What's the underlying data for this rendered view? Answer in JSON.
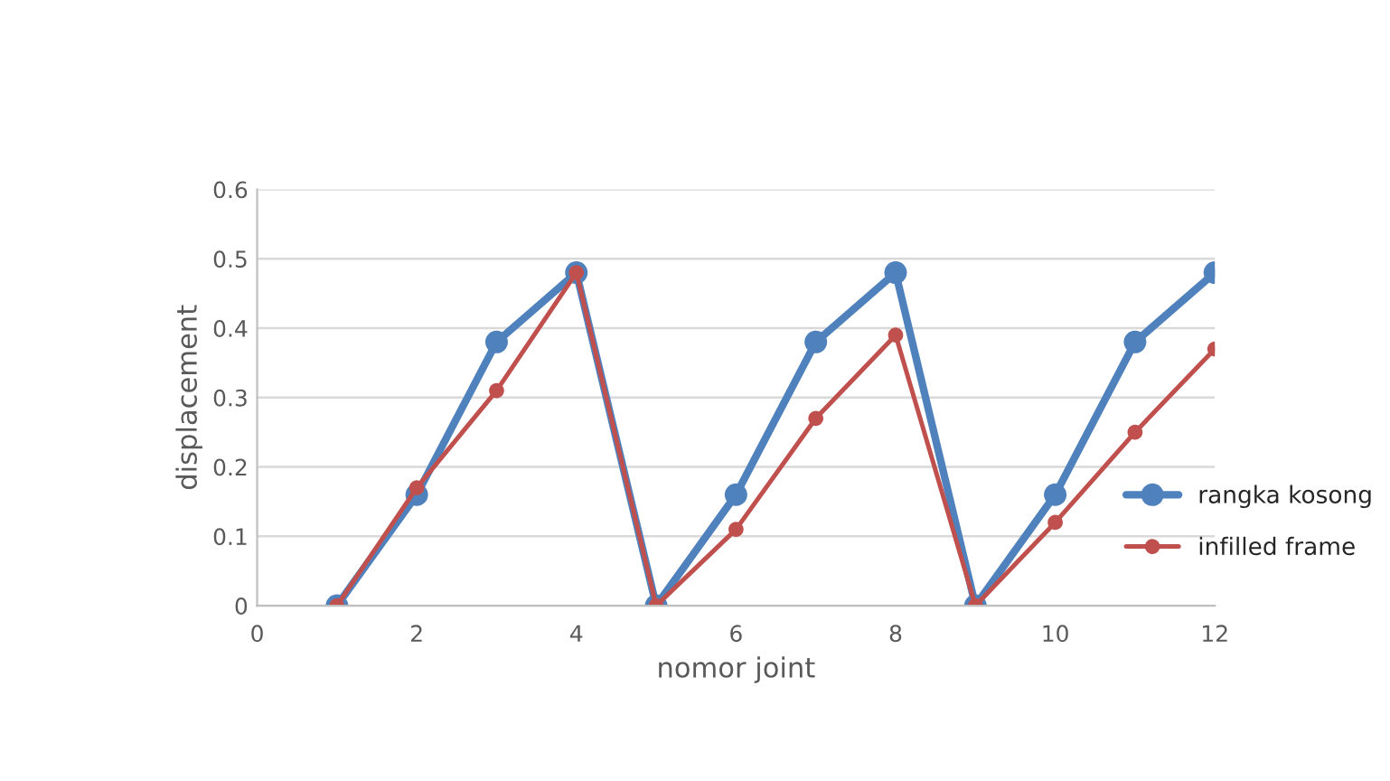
{
  "chart_data": {
    "type": "line",
    "xlabel": "nomor joint",
    "ylabel": "displacement",
    "x": [
      1,
      2,
      3,
      4,
      5,
      6,
      7,
      8,
      9,
      10,
      11,
      12
    ],
    "series": [
      {
        "name": "rangka kosong",
        "color": "#4f81bd",
        "values": [
          0,
          0.16,
          0.38,
          0.48,
          0,
          0.16,
          0.38,
          0.48,
          0,
          0.16,
          0.38,
          0.48
        ]
      },
      {
        "name": "infilled frame",
        "color": "#c0504d",
        "values": [
          0,
          0.17,
          0.31,
          0.48,
          0,
          0.11,
          0.27,
          0.39,
          0,
          0.12,
          0.25,
          0.37
        ]
      }
    ],
    "xlim": [
      0,
      12
    ],
    "xticks": [
      0,
      2,
      4,
      6,
      8,
      10,
      12
    ],
    "ylim": [
      0,
      0.6
    ],
    "yticks": [
      0,
      0.1,
      0.2,
      0.3,
      0.4,
      0.5,
      0.6
    ],
    "grid": "y",
    "legend": "right",
    "marker": "circle",
    "line_style": "solid"
  }
}
